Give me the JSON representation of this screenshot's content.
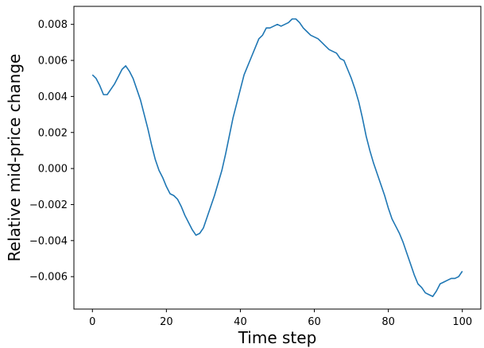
{
  "chart_data": {
    "type": "line",
    "title": "",
    "xlabel": "Time step",
    "ylabel": "Relative mid-price change",
    "xlim": [
      -5,
      105
    ],
    "ylim": [
      -0.0078,
      0.009
    ],
    "grid": false,
    "xticks": [
      {
        "value": 0,
        "label": "0"
      },
      {
        "value": 20,
        "label": "20"
      },
      {
        "value": 40,
        "label": "40"
      },
      {
        "value": 60,
        "label": "60"
      },
      {
        "value": 80,
        "label": "80"
      },
      {
        "value": 100,
        "label": "100"
      }
    ],
    "yticks": [
      {
        "value": -0.006,
        "label": "−0.006"
      },
      {
        "value": -0.004,
        "label": "−0.004"
      },
      {
        "value": -0.002,
        "label": "−0.002"
      },
      {
        "value": 0.0,
        "label": "0.000"
      },
      {
        "value": 0.002,
        "label": "0.002"
      },
      {
        "value": 0.004,
        "label": "0.004"
      },
      {
        "value": 0.006,
        "label": "0.006"
      },
      {
        "value": 0.008,
        "label": "0.008"
      }
    ],
    "series": [
      {
        "color": "#1f77b4",
        "x": [
          0,
          1,
          2,
          3,
          4,
          5,
          6,
          7,
          8,
          9,
          10,
          11,
          12,
          13,
          14,
          15,
          16,
          17,
          18,
          19,
          20,
          21,
          22,
          23,
          24,
          25,
          26,
          27,
          28,
          29,
          30,
          31,
          32,
          33,
          34,
          35,
          36,
          37,
          38,
          39,
          40,
          41,
          42,
          43,
          44,
          45,
          46,
          47,
          48,
          49,
          50,
          51,
          52,
          53,
          54,
          55,
          56,
          57,
          58,
          59,
          60,
          61,
          62,
          63,
          64,
          65,
          66,
          67,
          68,
          69,
          70,
          71,
          72,
          73,
          74,
          75,
          76,
          77,
          78,
          79,
          80,
          81,
          82,
          83,
          84,
          85,
          86,
          87,
          88,
          89,
          90,
          91,
          92,
          93,
          94,
          95,
          96,
          97,
          98,
          99,
          100
        ],
        "y": [
          0.0052,
          0.005,
          0.0046,
          0.0041,
          0.0041,
          0.0044,
          0.0047,
          0.0051,
          0.0055,
          0.0057,
          0.0054,
          0.005,
          0.0044,
          0.0038,
          0.003,
          0.0022,
          0.0013,
          0.0005,
          -0.0001,
          -0.0005,
          -0.001,
          -0.0014,
          -0.0015,
          -0.0017,
          -0.0021,
          -0.0026,
          -0.003,
          -0.0034,
          -0.0037,
          -0.0036,
          -0.0033,
          -0.0027,
          -0.0021,
          -0.0015,
          -0.0008,
          -0.0001,
          0.0008,
          0.0018,
          0.0028,
          0.0036,
          0.0044,
          0.0052,
          0.0057,
          0.0062,
          0.0067,
          0.0072,
          0.0074,
          0.0078,
          0.0078,
          0.0079,
          0.008,
          0.0079,
          0.008,
          0.0081,
          0.0083,
          0.0083,
          0.0081,
          0.0078,
          0.0076,
          0.0074,
          0.0073,
          0.0072,
          0.007,
          0.0068,
          0.0066,
          0.0065,
          0.0064,
          0.0061,
          0.006,
          0.0055,
          0.005,
          0.0044,
          0.0037,
          0.0028,
          0.0018,
          0.001,
          0.0003,
          -0.0003,
          -0.0009,
          -0.0015,
          -0.0022,
          -0.0028,
          -0.0032,
          -0.0036,
          -0.0041,
          -0.0047,
          -0.0053,
          -0.0059,
          -0.0064,
          -0.0066,
          -0.0069,
          -0.007,
          -0.0071,
          -0.0068,
          -0.0064,
          -0.0063,
          -0.0062,
          -0.0061,
          -0.0061,
          -0.006,
          -0.0057
        ]
      }
    ]
  }
}
